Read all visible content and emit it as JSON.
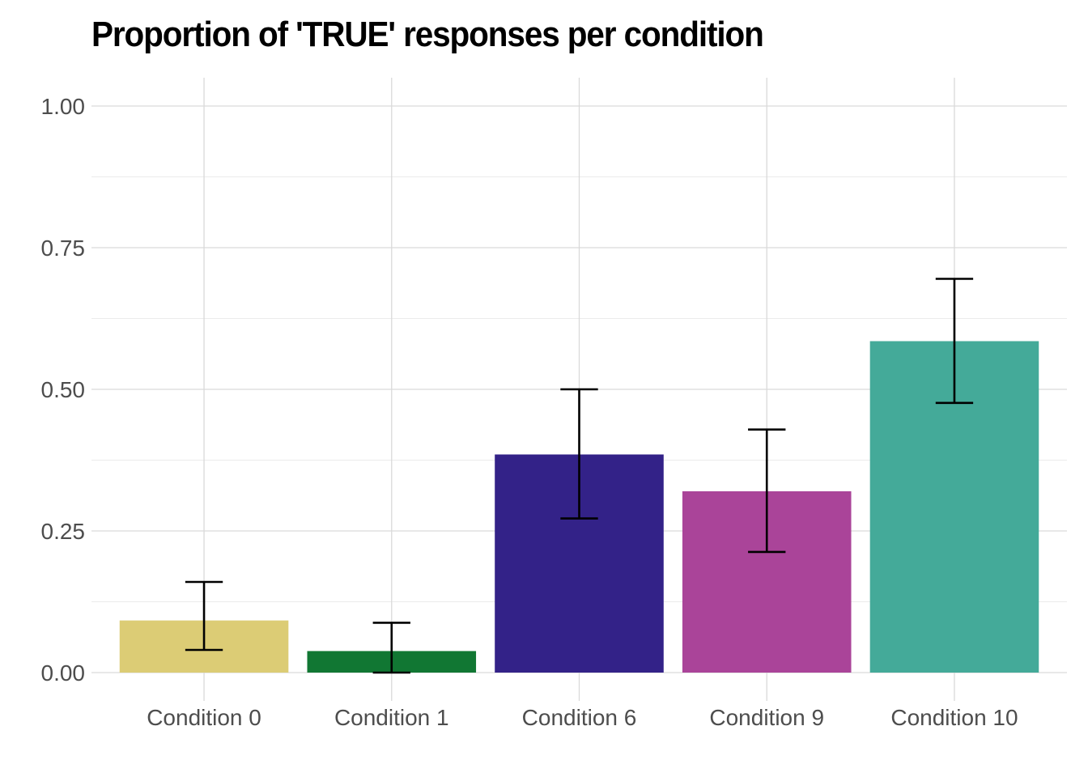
{
  "chart_data": {
    "type": "bar",
    "title": "Proportion of 'TRUE' responses per condition",
    "xlabel": "",
    "ylabel": "",
    "categories": [
      "Condition 0",
      "Condition 1",
      "Condition 6",
      "Condition 9",
      "Condition 10"
    ],
    "values": [
      0.092,
      0.038,
      0.385,
      0.32,
      0.585
    ],
    "error_low": [
      0.04,
      0.0,
      0.272,
      0.213,
      0.476
    ],
    "error_high": [
      0.16,
      0.088,
      0.5,
      0.429,
      0.695
    ],
    "colors": [
      "#DCCC75",
      "#117733",
      "#332288",
      "#AA4499",
      "#44AA99"
    ],
    "ylim": [
      -0.05,
      1.05
    ],
    "yticks": [
      0,
      0.25,
      0.5,
      0.75,
      1.0
    ],
    "ytick_labels": [
      "0.00",
      "0.25",
      "0.50",
      "0.75",
      "1.00"
    ],
    "grid": true,
    "legend": "none"
  }
}
